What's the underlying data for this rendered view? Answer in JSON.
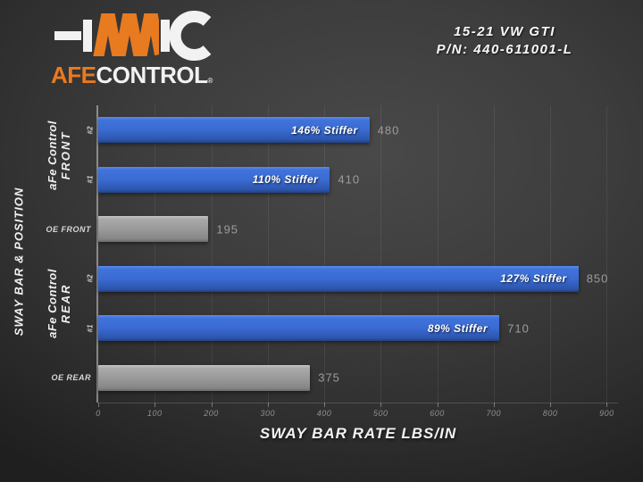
{
  "brand": {
    "name_orange": "AFE",
    "name_white": "CONTROL",
    "registered": "®"
  },
  "header": {
    "vehicle": "15-21 VW GTI",
    "part_number": "P/N: 440-611001-L"
  },
  "colors": {
    "accent_orange": "#e87a20",
    "bar_blue": "#3a6bd2",
    "bar_gray": "#9a9a9a",
    "text_muted": "#9c9c9c",
    "background_dark": "#2f2f2f"
  },
  "chart_data": {
    "type": "bar",
    "orientation": "horizontal",
    "title": "",
    "xlabel": "SWAY BAR RATE LBS/IN",
    "ylabel": "SWAY BAR & POSITION",
    "xlim": [
      0,
      920
    ],
    "xticks": [
      0,
      100,
      200,
      300,
      400,
      500,
      600,
      700,
      800,
      900
    ],
    "grid": true,
    "legend": false,
    "groups": [
      {
        "line1": "aFe Control",
        "line2": "FRONT",
        "rows": [
          0,
          1
        ]
      },
      {
        "line1": "aFe Control",
        "line2": "REAR",
        "rows": [
          3,
          4
        ]
      }
    ],
    "bars": [
      {
        "label": "#2",
        "label_style": "rotated",
        "value": 480,
        "annotation": "146% Stiffer",
        "color_key": "blue",
        "series": "aFe Control Front"
      },
      {
        "label": "#1",
        "label_style": "rotated",
        "value": 410,
        "annotation": "110% Stiffer",
        "color_key": "blue",
        "series": "aFe Control Front"
      },
      {
        "label": "OE FRONT",
        "label_style": "horizontal",
        "value": 195,
        "annotation": "",
        "color_key": "gray",
        "series": "OE"
      },
      {
        "label": "#2",
        "label_style": "rotated",
        "value": 850,
        "annotation": "127% Stiffer",
        "color_key": "blue",
        "series": "aFe Control Rear"
      },
      {
        "label": "#1",
        "label_style": "rotated",
        "value": 710,
        "annotation": "89% Stiffer",
        "color_key": "blue",
        "series": "aFe Control Rear"
      },
      {
        "label": "OE REAR",
        "label_style": "horizontal",
        "value": 375,
        "annotation": "",
        "color_key": "gray",
        "series": "OE"
      }
    ]
  }
}
